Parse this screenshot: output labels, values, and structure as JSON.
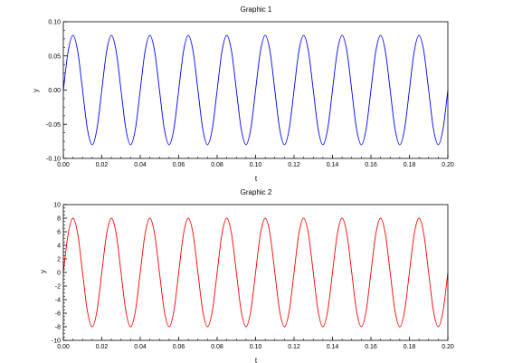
{
  "chart_data": [
    {
      "type": "line",
      "title": "Graphic 1",
      "xlabel": "t",
      "ylabel": "y",
      "xlim": [
        0,
        0.2
      ],
      "ylim": [
        -0.1,
        0.1
      ],
      "x_ticks": [
        "0.00",
        "0.02",
        "0.04",
        "0.06",
        "0.08",
        "0.10",
        "0.12",
        "0.14",
        "0.16",
        "0.18",
        "0.20"
      ],
      "y_ticks": [
        "-0.10",
        "-0.05",
        "0.00",
        "0.05",
        "0.10"
      ],
      "grid": false,
      "series": [
        {
          "color": "#0000ff",
          "x": [
            0,
            0.0025,
            0.005,
            0.0075,
            0.01,
            0.0125,
            0.015,
            0.0175,
            0.02,
            0.0225,
            0.025,
            0.0275,
            0.03,
            0.0325,
            0.035,
            0.0375,
            0.04,
            0.0425,
            0.045,
            0.0475,
            0.05,
            0.0525,
            0.055,
            0.0575,
            0.06,
            0.0625,
            0.065,
            0.0675,
            0.07,
            0.0725,
            0.075,
            0.0775,
            0.08,
            0.0825,
            0.085,
            0.0875,
            0.09,
            0.0925,
            0.095,
            0.0975,
            0.1,
            0.1025,
            0.105,
            0.1075,
            0.11,
            0.1125,
            0.115,
            0.1175,
            0.12,
            0.1225,
            0.125,
            0.1275,
            0.13,
            0.1325,
            0.135,
            0.1375,
            0.14,
            0.1425,
            0.145,
            0.1475,
            0.15,
            0.1525,
            0.155,
            0.1575,
            0.16,
            0.1625,
            0.165,
            0.1675,
            0.17,
            0.1725,
            0.175,
            0.1775,
            0.18,
            0.1825,
            0.185,
            0.1875,
            0.19,
            0.1925,
            0.195,
            0.1975,
            0.2
          ],
          "y": [
            0,
            0.0566,
            0.08,
            0.0566,
            0,
            -0.0566,
            -0.08,
            -0.0566,
            0,
            0.0566,
            0.08,
            0.0566,
            0,
            -0.0566,
            -0.08,
            -0.0566,
            0,
            0.0566,
            0.08,
            0.0566,
            0,
            -0.0566,
            -0.08,
            -0.0566,
            0,
            0.0566,
            0.08,
            0.0566,
            0,
            -0.0566,
            -0.08,
            -0.0566,
            0,
            0.0566,
            0.08,
            0.0566,
            0,
            -0.0566,
            -0.08,
            -0.0566,
            0,
            0.0566,
            0.08,
            0.0566,
            0,
            -0.0566,
            -0.08,
            -0.0566,
            0,
            0.0566,
            0.08,
            0.0566,
            0,
            -0.0566,
            -0.08,
            -0.0566,
            0,
            0.0566,
            0.08,
            0.0566,
            0,
            -0.0566,
            -0.08,
            -0.0566,
            0,
            0.0566,
            0.08,
            0.0566,
            0,
            -0.0566,
            -0.08,
            -0.0566,
            0,
            0.0566,
            0.08,
            0.0566,
            0,
            -0.0566,
            -0.08,
            -0.0566,
            0
          ]
        }
      ]
    },
    {
      "type": "line",
      "title": "Graphic 2",
      "xlabel": "t",
      "ylabel": "y",
      "xlim": [
        0,
        0.2
      ],
      "ylim": [
        -10,
        10
      ],
      "x_ticks": [
        "0.00",
        "0.02",
        "0.04",
        "0.06",
        "0.08",
        "0.10",
        "0.12",
        "0.14",
        "0.16",
        "0.18",
        "0.20"
      ],
      "y_ticks": [
        "-10",
        "-8",
        "-6",
        "-4",
        "-2",
        "0",
        "2",
        "4",
        "6",
        "8",
        "10"
      ],
      "grid": false,
      "series": [
        {
          "color": "#ff0000",
          "x": [
            0,
            0.0025,
            0.005,
            0.0075,
            0.01,
            0.0125,
            0.015,
            0.0175,
            0.02,
            0.0225,
            0.025,
            0.0275,
            0.03,
            0.0325,
            0.035,
            0.0375,
            0.04,
            0.0425,
            0.045,
            0.0475,
            0.05,
            0.0525,
            0.055,
            0.0575,
            0.06,
            0.0625,
            0.065,
            0.0675,
            0.07,
            0.0725,
            0.075,
            0.0775,
            0.08,
            0.0825,
            0.085,
            0.0875,
            0.09,
            0.0925,
            0.095,
            0.0975,
            0.1,
            0.1025,
            0.105,
            0.1075,
            0.11,
            0.1125,
            0.115,
            0.1175,
            0.12,
            0.1225,
            0.125,
            0.1275,
            0.13,
            0.1325,
            0.135,
            0.1375,
            0.14,
            0.1425,
            0.145,
            0.1475,
            0.15,
            0.1525,
            0.155,
            0.1575,
            0.16,
            0.1625,
            0.165,
            0.1675,
            0.17,
            0.1725,
            0.175,
            0.1775,
            0.18,
            0.1825,
            0.185,
            0.1875,
            0.19,
            0.1925,
            0.195,
            0.1975,
            0.2
          ],
          "y": [
            0,
            5.66,
            8,
            5.66,
            0,
            -5.66,
            -8,
            -5.66,
            0,
            5.66,
            8,
            5.66,
            0,
            -5.66,
            -8,
            -5.66,
            0,
            5.66,
            8,
            5.66,
            0,
            -5.66,
            -8,
            -5.66,
            0,
            5.66,
            8,
            5.66,
            0,
            -5.66,
            -8,
            -5.66,
            0,
            5.66,
            8,
            5.66,
            0,
            -5.66,
            -8,
            -5.66,
            0,
            5.66,
            8,
            5.66,
            0,
            -5.66,
            -8,
            -5.66,
            0,
            5.66,
            8,
            5.66,
            0,
            -5.66,
            -8,
            -5.66,
            0,
            5.66,
            8,
            5.66,
            0,
            -5.66,
            -8,
            -5.66,
            0,
            5.66,
            8,
            5.66,
            0,
            -5.66,
            -8,
            -5.66,
            0,
            5.66,
            8,
            5.66,
            0,
            -5.66,
            -8,
            -5.66,
            0
          ]
        }
      ]
    }
  ]
}
